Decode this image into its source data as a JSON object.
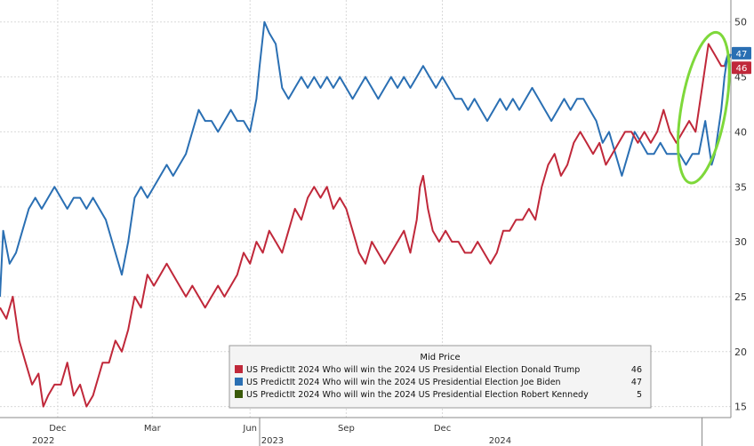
{
  "chart_data": {
    "type": "line",
    "legend": {
      "title": "Mid Price",
      "placement": "bottom-right",
      "entries": [
        {
          "label": "US PredictIt 2024 Who will win the 2024 US Presidential Election Donald Trump",
          "value": "46",
          "color": "#c0283a"
        },
        {
          "label": "US PredictIt 2024 Who will win the 2024 US Presidential Election Joe Biden",
          "value": "47",
          "color": "#2a6fb3"
        },
        {
          "label": "US PredictIt 2024 Who will win the 2024 US Presidential Election Robert Kennedy",
          "value": "5",
          "color": "#3a5a0a"
        }
      ]
    },
    "ylim": [
      14,
      52
    ],
    "y_ticks": [
      15,
      20,
      25,
      30,
      35,
      40,
      45,
      50
    ],
    "x_ticks": [
      {
        "label": "Dec",
        "t": 1.8
      },
      {
        "label": "Mar",
        "t": 4.75
      },
      {
        "label": "Jun",
        "t": 7.8
      },
      {
        "label": "Sep",
        "t": 10.8
      },
      {
        "label": "Dec",
        "t": 13.8
      }
    ],
    "year_labels": [
      {
        "label": "2022",
        "t": 1.35
      },
      {
        "label": "2023",
        "t": 8.5
      },
      {
        "label": "2024",
        "t": 15.6
      }
    ],
    "last_value_labels": [
      {
        "value": "47",
        "color": "#2a6fb3"
      },
      {
        "value": "46",
        "color": "#c0283a"
      }
    ],
    "grid": true,
    "series": [
      {
        "name": "US PredictIt 2024 Who will win the 2024 US Presidential Election Donald Trump",
        "color": "#c0283a",
        "points": [
          [
            0,
            24
          ],
          [
            0.2,
            23
          ],
          [
            0.4,
            25
          ],
          [
            0.6,
            21
          ],
          [
            0.8,
            19
          ],
          [
            1.0,
            17
          ],
          [
            1.2,
            18
          ],
          [
            1.35,
            15
          ],
          [
            1.5,
            16
          ],
          [
            1.7,
            17
          ],
          [
            1.9,
            17
          ],
          [
            2.1,
            19
          ],
          [
            2.3,
            16
          ],
          [
            2.5,
            17
          ],
          [
            2.7,
            15
          ],
          [
            2.9,
            16
          ],
          [
            3.1,
            18
          ],
          [
            3.2,
            19
          ],
          [
            3.4,
            19
          ],
          [
            3.6,
            21
          ],
          [
            3.8,
            20
          ],
          [
            4.0,
            22
          ],
          [
            4.2,
            25
          ],
          [
            4.4,
            24
          ],
          [
            4.6,
            27
          ],
          [
            4.8,
            26
          ],
          [
            5.0,
            27
          ],
          [
            5.2,
            28
          ],
          [
            5.4,
            27
          ],
          [
            5.6,
            26
          ],
          [
            5.8,
            25
          ],
          [
            6.0,
            26
          ],
          [
            6.2,
            25
          ],
          [
            6.4,
            24
          ],
          [
            6.6,
            25
          ],
          [
            6.8,
            26
          ],
          [
            7.0,
            25
          ],
          [
            7.2,
            26
          ],
          [
            7.4,
            27
          ],
          [
            7.6,
            29
          ],
          [
            7.8,
            28
          ],
          [
            8.0,
            30
          ],
          [
            8.2,
            29
          ],
          [
            8.4,
            31
          ],
          [
            8.6,
            30
          ],
          [
            8.8,
            29
          ],
          [
            9.0,
            31
          ],
          [
            9.2,
            33
          ],
          [
            9.4,
            32
          ],
          [
            9.6,
            34
          ],
          [
            9.8,
            35
          ],
          [
            10.0,
            34
          ],
          [
            10.2,
            35
          ],
          [
            10.4,
            33
          ],
          [
            10.6,
            34
          ],
          [
            10.8,
            33
          ],
          [
            11.0,
            31
          ],
          [
            11.2,
            29
          ],
          [
            11.4,
            28
          ],
          [
            11.6,
            30
          ],
          [
            11.8,
            29
          ],
          [
            12.0,
            28
          ],
          [
            12.2,
            29
          ],
          [
            12.4,
            30
          ],
          [
            12.6,
            31
          ],
          [
            12.8,
            29
          ],
          [
            13.0,
            32
          ],
          [
            13.1,
            35
          ],
          [
            13.2,
            36
          ],
          [
            13.35,
            33
          ],
          [
            13.5,
            31
          ],
          [
            13.7,
            30
          ],
          [
            13.9,
            31
          ],
          [
            14.1,
            30
          ],
          [
            14.3,
            30
          ],
          [
            14.5,
            29
          ],
          [
            14.7,
            29
          ],
          [
            14.9,
            30
          ],
          [
            15.1,
            29
          ],
          [
            15.3,
            28
          ],
          [
            15.5,
            29
          ],
          [
            15.7,
            31
          ],
          [
            15.9,
            31
          ],
          [
            16.1,
            32
          ],
          [
            16.3,
            32
          ],
          [
            16.5,
            33
          ],
          [
            16.7,
            32
          ],
          [
            16.9,
            35
          ],
          [
            17.1,
            37
          ],
          [
            17.3,
            38
          ],
          [
            17.5,
            36
          ],
          [
            17.7,
            37
          ],
          [
            17.9,
            39
          ],
          [
            18.1,
            40
          ],
          [
            18.3,
            39
          ],
          [
            18.5,
            38
          ],
          [
            18.7,
            39
          ],
          [
            18.9,
            37
          ],
          [
            19.1,
            38
          ],
          [
            19.3,
            39
          ],
          [
            19.5,
            40
          ],
          [
            19.7,
            40
          ],
          [
            19.9,
            39
          ],
          [
            20.1,
            40
          ],
          [
            20.3,
            39
          ],
          [
            20.5,
            40
          ],
          [
            20.7,
            42
          ],
          [
            20.9,
            40
          ],
          [
            21.1,
            39
          ],
          [
            21.3,
            40
          ],
          [
            21.5,
            41
          ],
          [
            21.7,
            40
          ],
          [
            21.9,
            44
          ],
          [
            22.1,
            48
          ],
          [
            22.3,
            47
          ],
          [
            22.5,
            46
          ],
          [
            22.6,
            46
          ]
        ]
      },
      {
        "name": "US PredictIt 2024 Who will win the 2024 US Presidential Election Joe Biden",
        "color": "#2a6fb3",
        "points": [
          [
            0,
            25
          ],
          [
            0.1,
            31
          ],
          [
            0.3,
            28
          ],
          [
            0.5,
            29
          ],
          [
            0.7,
            31
          ],
          [
            0.9,
            33
          ],
          [
            1.1,
            34
          ],
          [
            1.3,
            33
          ],
          [
            1.5,
            34
          ],
          [
            1.7,
            35
          ],
          [
            1.9,
            34
          ],
          [
            2.1,
            33
          ],
          [
            2.3,
            34
          ],
          [
            2.5,
            34
          ],
          [
            2.7,
            33
          ],
          [
            2.9,
            34
          ],
          [
            3.1,
            33
          ],
          [
            3.3,
            32
          ],
          [
            3.5,
            30
          ],
          [
            3.7,
            28
          ],
          [
            3.8,
            27
          ],
          [
            4.0,
            30
          ],
          [
            4.2,
            34
          ],
          [
            4.4,
            35
          ],
          [
            4.6,
            34
          ],
          [
            4.8,
            35
          ],
          [
            5.0,
            36
          ],
          [
            5.2,
            37
          ],
          [
            5.4,
            36
          ],
          [
            5.6,
            37
          ],
          [
            5.8,
            38
          ],
          [
            6.0,
            40
          ],
          [
            6.2,
            42
          ],
          [
            6.4,
            41
          ],
          [
            6.6,
            41
          ],
          [
            6.8,
            40
          ],
          [
            7.0,
            41
          ],
          [
            7.2,
            42
          ],
          [
            7.4,
            41
          ],
          [
            7.6,
            41
          ],
          [
            7.8,
            40
          ],
          [
            8.0,
            43
          ],
          [
            8.1,
            46
          ],
          [
            8.25,
            50
          ],
          [
            8.4,
            49
          ],
          [
            8.6,
            48
          ],
          [
            8.8,
            44
          ],
          [
            9.0,
            43
          ],
          [
            9.2,
            44
          ],
          [
            9.4,
            45
          ],
          [
            9.6,
            44
          ],
          [
            9.8,
            45
          ],
          [
            10.0,
            44
          ],
          [
            10.2,
            45
          ],
          [
            10.4,
            44
          ],
          [
            10.6,
            45
          ],
          [
            10.8,
            44
          ],
          [
            11.0,
            43
          ],
          [
            11.2,
            44
          ],
          [
            11.4,
            45
          ],
          [
            11.6,
            44
          ],
          [
            11.8,
            43
          ],
          [
            12.0,
            44
          ],
          [
            12.2,
            45
          ],
          [
            12.4,
            44
          ],
          [
            12.6,
            45
          ],
          [
            12.8,
            44
          ],
          [
            13.0,
            45
          ],
          [
            13.2,
            46
          ],
          [
            13.4,
            45
          ],
          [
            13.6,
            44
          ],
          [
            13.8,
            45
          ],
          [
            14.0,
            44
          ],
          [
            14.2,
            43
          ],
          [
            14.4,
            43
          ],
          [
            14.6,
            42
          ],
          [
            14.8,
            43
          ],
          [
            15.0,
            42
          ],
          [
            15.2,
            41
          ],
          [
            15.4,
            42
          ],
          [
            15.6,
            43
          ],
          [
            15.8,
            42
          ],
          [
            16.0,
            43
          ],
          [
            16.2,
            42
          ],
          [
            16.4,
            43
          ],
          [
            16.6,
            44
          ],
          [
            16.8,
            43
          ],
          [
            17.0,
            42
          ],
          [
            17.2,
            41
          ],
          [
            17.4,
            42
          ],
          [
            17.6,
            43
          ],
          [
            17.8,
            42
          ],
          [
            18.0,
            43
          ],
          [
            18.2,
            43
          ],
          [
            18.4,
            42
          ],
          [
            18.6,
            41
          ],
          [
            18.8,
            39
          ],
          [
            19.0,
            40
          ],
          [
            19.2,
            38
          ],
          [
            19.4,
            36
          ],
          [
            19.6,
            38
          ],
          [
            19.8,
            40
          ],
          [
            20.0,
            39
          ],
          [
            20.2,
            38
          ],
          [
            20.4,
            38
          ],
          [
            20.6,
            39
          ],
          [
            20.8,
            38
          ],
          [
            21.0,
            38
          ],
          [
            21.2,
            38
          ],
          [
            21.4,
            37
          ],
          [
            21.6,
            38
          ],
          [
            21.8,
            38
          ],
          [
            22.0,
            41
          ],
          [
            22.1,
            39
          ],
          [
            22.2,
            37
          ],
          [
            22.3,
            38
          ],
          [
            22.5,
            42
          ],
          [
            22.6,
            45
          ],
          [
            22.7,
            47
          ],
          [
            22.8,
            47
          ],
          [
            22.6,
            46
          ],
          [
            22.7,
            47
          ]
        ]
      }
    ],
    "annotation": {
      "type": "ellipse",
      "color": "#7ed83a"
    }
  }
}
